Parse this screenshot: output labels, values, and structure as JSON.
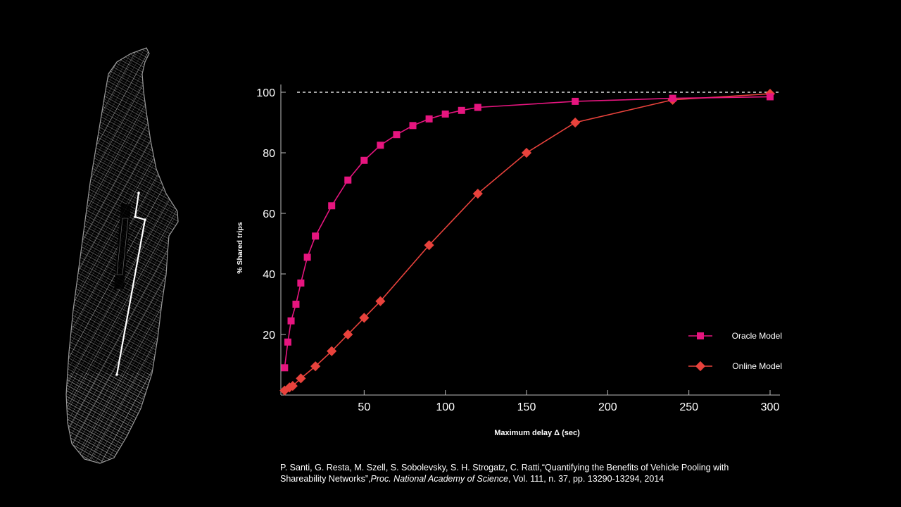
{
  "map": {
    "description_icon": "street-network-map-icon"
  },
  "chart_data": {
    "type": "line",
    "title": "",
    "xlabel": "Maximum delay Δ (sec)",
    "ylabel": "% Shared trips",
    "xlim": [
      0,
      305
    ],
    "ylim": [
      0,
      103
    ],
    "xticks": [
      50,
      100,
      150,
      200,
      250,
      300
    ],
    "yticks": [
      20,
      40,
      60,
      80,
      100
    ],
    "reference_line": 100,
    "grid": false,
    "legend_position": "bottom-right",
    "series": [
      {
        "name": "Oracle Model",
        "marker": "square",
        "color": "#e6157f",
        "x": [
          1,
          3,
          5,
          8,
          11,
          15,
          20,
          30,
          40,
          50,
          60,
          70,
          80,
          90,
          100,
          110,
          120,
          180,
          240,
          300
        ],
        "y": [
          9,
          17.5,
          24.5,
          30,
          37,
          45.5,
          52.5,
          62.5,
          71,
          77.5,
          82.5,
          86,
          89,
          91.2,
          92.8,
          94,
          95,
          97,
          98,
          98.5
        ]
      },
      {
        "name": "Online Model",
        "marker": "diamond",
        "color": "#e8423c",
        "x": [
          1,
          4,
          6,
          11,
          20,
          30,
          40,
          50,
          60,
          90,
          120,
          150,
          180,
          240,
          300
        ],
        "y": [
          1.5,
          2.5,
          3,
          5.5,
          9.5,
          14.5,
          20,
          25.5,
          31,
          49.5,
          66.5,
          80,
          90,
          97.5,
          99.5
        ]
      }
    ]
  },
  "citation": {
    "line1": "P. Santi, G. Resta, M. Szell, S. Sobolevsky, S. H. Strogatz, C. Ratti,“Quantifying  the Benefits of Vehicle Pooling with",
    "line2_a": "Shareability Networks”,",
    "line2_journal": "Proc. National Academy of Science",
    "line2_b": ", Vol. 111, n. 37, pp. 13290-13294,  2014"
  }
}
